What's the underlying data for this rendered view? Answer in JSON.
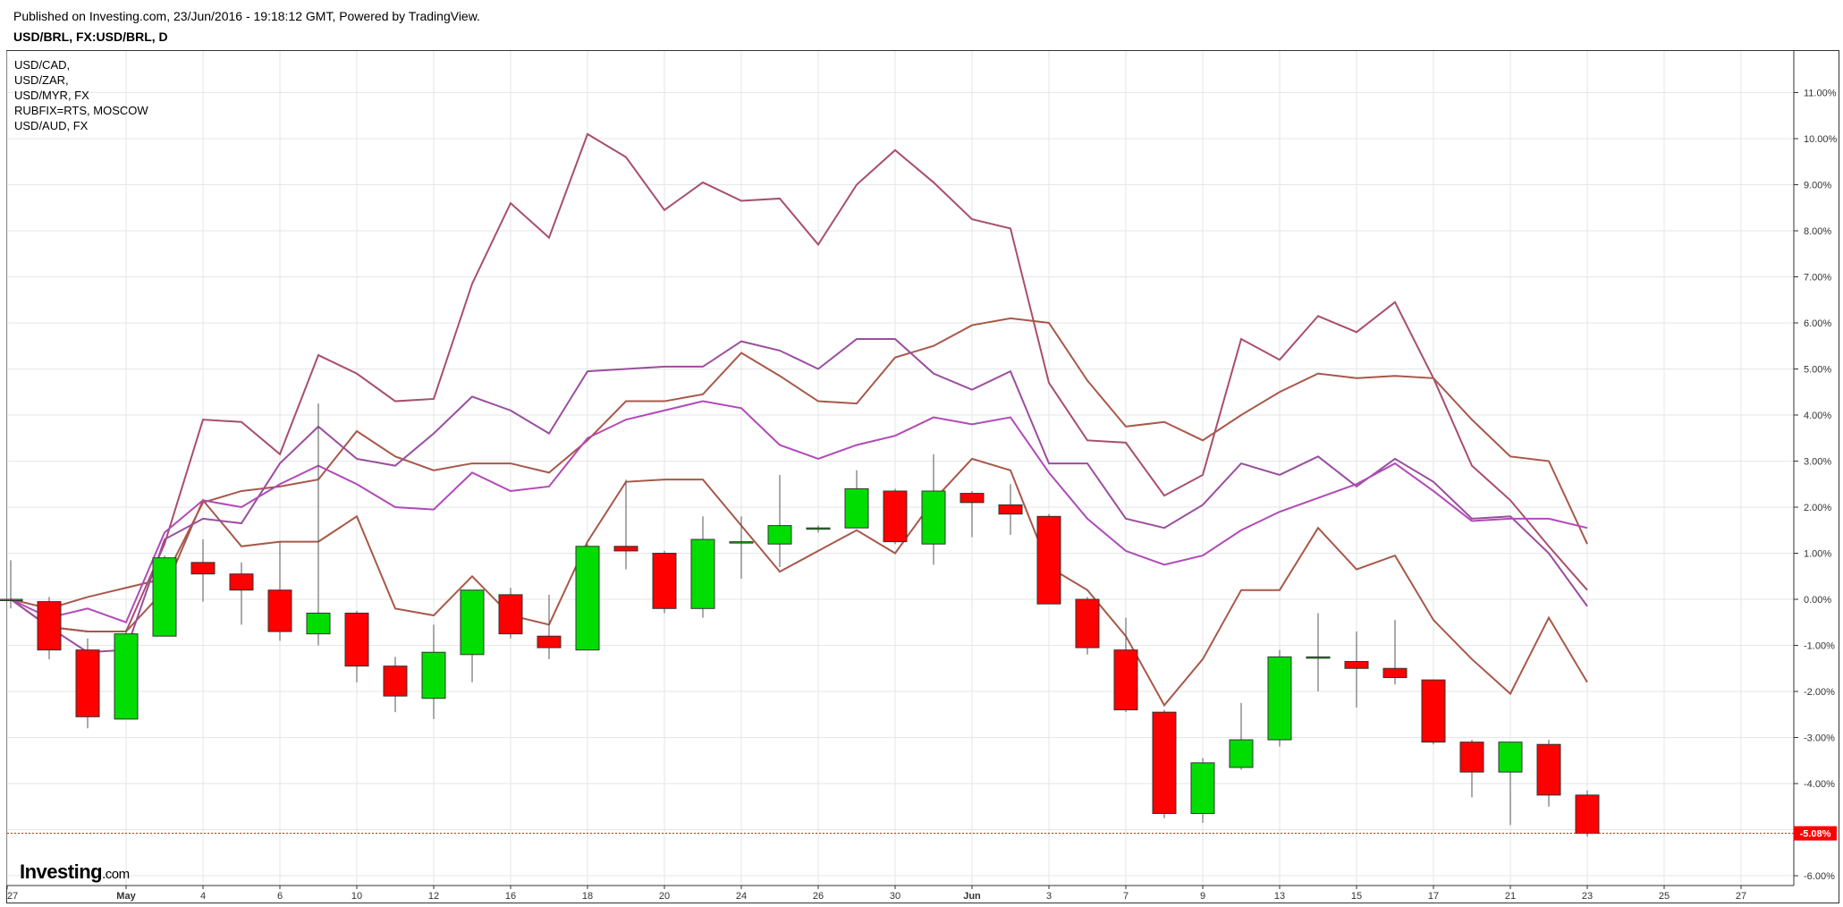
{
  "header": {
    "published": "Published on Investing.com, 23/Jun/2016 - 19:18:12 GMT, Powered by TradingView.",
    "symbol": "USD/BRL, FX:USD/BRL, D"
  },
  "logo": {
    "name": "Investing",
    "suffix": ".com"
  },
  "chart_data": {
    "type": "candlestick_with_lines",
    "colors": {
      "up": "#00dd00",
      "down": "#ff0000",
      "wick": "#555555",
      "grid": "#e6e6e6",
      "current_price": "#ff0000"
    },
    "legend": [
      "USD/CAD,",
      "USD/ZAR,",
      "USD/MYR, FX",
      "RUBFIX=RTS, MOSCOW",
      "USD/AUD, FX"
    ],
    "y_ticks": [
      "11.00%",
      "10.00%",
      "9.00%",
      "8.00%",
      "7.00%",
      "6.00%",
      "5.00%",
      "4.00%",
      "3.00%",
      "2.00%",
      "1.00%",
      "0.00%",
      "-1.00%",
      "-2.00%",
      "-3.00%",
      "-4.00%",
      "-5.00%",
      "-6.00%"
    ],
    "y_tick_values": [
      11,
      10,
      9,
      8,
      7,
      6,
      5,
      4,
      3,
      2,
      1,
      0,
      -1,
      -2,
      -3,
      -4,
      -5,
      -6
    ],
    "ylim": [
      -6.3,
      11.3
    ],
    "x_ticks": [
      "27",
      "May",
      "4",
      "6",
      "10",
      "12",
      "16",
      "18",
      "20",
      "24",
      "26",
      "30",
      "Jun",
      "3",
      "7",
      "9",
      "13",
      "15",
      "17",
      "21",
      "23",
      "25",
      "27"
    ],
    "x_tick_index": [
      0,
      3,
      5,
      7,
      9,
      11,
      13,
      15,
      17,
      19,
      21,
      23,
      25,
      27,
      29,
      31,
      33,
      35,
      37,
      39,
      41,
      43,
      45
    ],
    "current_price_label": "-5.08%",
    "current_price": -5.08,
    "candles": [
      {
        "o": 0.0,
        "h": 0.85,
        "l": -0.2,
        "c": 0.0
      },
      {
        "o": -0.05,
        "h": 0.05,
        "l": -1.3,
        "c": -1.1
      },
      {
        "o": -1.1,
        "h": -0.85,
        "l": -2.8,
        "c": -2.55
      },
      {
        "o": -2.6,
        "h": -0.65,
        "l": -2.6,
        "c": -0.75
      },
      {
        "o": -0.8,
        "h": 0.95,
        "l": -0.8,
        "c": 0.9
      },
      {
        "o": 0.8,
        "h": 1.3,
        "l": -0.05,
        "c": 0.55
      },
      {
        "o": 0.55,
        "h": 0.8,
        "l": -0.55,
        "c": 0.2
      },
      {
        "o": 0.2,
        "h": 1.25,
        "l": -0.9,
        "c": -0.7
      },
      {
        "o": -0.75,
        "h": 4.25,
        "l": -1.0,
        "c": -0.3
      },
      {
        "o": -0.3,
        "h": -0.25,
        "l": -1.8,
        "c": -1.45
      },
      {
        "o": -1.45,
        "h": -1.25,
        "l": -2.45,
        "c": -2.1
      },
      {
        "o": -2.15,
        "h": -0.55,
        "l": -2.6,
        "c": -1.15
      },
      {
        "o": -1.2,
        "h": 0.2,
        "l": -1.8,
        "c": 0.2
      },
      {
        "o": 0.1,
        "h": 0.25,
        "l": -0.85,
        "c": -0.75
      },
      {
        "o": -0.8,
        "h": 0.1,
        "l": -1.3,
        "c": -1.05
      },
      {
        "o": -1.1,
        "h": 1.2,
        "l": -1.1,
        "c": 1.15
      },
      {
        "o": 1.15,
        "h": 2.6,
        "l": 0.65,
        "c": 1.05
      },
      {
        "o": 1.0,
        "h": 1.05,
        "l": -0.3,
        "c": -0.2
      },
      {
        "o": -0.2,
        "h": 1.8,
        "l": -0.4,
        "c": 1.3
      },
      {
        "o": 1.25,
        "h": 1.8,
        "l": 0.45,
        "c": 1.25
      },
      {
        "o": 1.2,
        "h": 2.7,
        "l": 0.7,
        "c": 1.6
      },
      {
        "o": 1.55,
        "h": 1.6,
        "l": 1.45,
        "c": 1.55
      },
      {
        "o": 1.55,
        "h": 2.8,
        "l": 1.55,
        "c": 2.4
      },
      {
        "o": 2.35,
        "h": 2.4,
        "l": 1.2,
        "c": 1.25
      },
      {
        "o": 1.2,
        "h": 3.15,
        "l": 0.75,
        "c": 2.35
      },
      {
        "o": 2.3,
        "h": 2.35,
        "l": 1.35,
        "c": 2.1
      },
      {
        "o": 2.05,
        "h": 2.5,
        "l": 1.4,
        "c": 1.85
      },
      {
        "o": 1.8,
        "h": 1.85,
        "l": -0.1,
        "c": -0.1
      },
      {
        "o": 0.0,
        "h": 0.05,
        "l": -1.2,
        "c": -1.05
      },
      {
        "o": -1.1,
        "h": -0.4,
        "l": -2.45,
        "c": -2.4
      },
      {
        "o": -2.45,
        "h": -2.4,
        "l": -4.75,
        "c": -4.65
      },
      {
        "o": -4.65,
        "h": -3.45,
        "l": -4.85,
        "c": -3.55
      },
      {
        "o": -3.65,
        "h": -2.25,
        "l": -3.7,
        "c": -3.05
      },
      {
        "o": -3.05,
        "h": -1.1,
        "l": -3.2,
        "c": -1.25
      },
      {
        "o": -1.25,
        "h": -0.3,
        "l": -2.0,
        "c": -1.25
      },
      {
        "o": -1.35,
        "h": -0.7,
        "l": -2.35,
        "c": -1.5
      },
      {
        "o": -1.5,
        "h": -0.45,
        "l": -1.85,
        "c": -1.7
      },
      {
        "o": -1.75,
        "h": -1.75,
        "l": -3.15,
        "c": -3.1
      },
      {
        "o": -3.1,
        "h": -3.05,
        "l": -4.3,
        "c": -3.75
      },
      {
        "o": -3.75,
        "h": -3.1,
        "l": -4.9,
        "c": -3.1
      },
      {
        "o": -3.15,
        "h": -3.05,
        "l": -4.5,
        "c": -4.25
      },
      {
        "o": -4.25,
        "h": -4.15,
        "l": -5.15,
        "c": -5.08
      }
    ],
    "series": [
      {
        "color": "#a84e6e",
        "values": [
          0,
          -0.6,
          -0.7,
          -0.7,
          1.2,
          3.9,
          3.85,
          3.15,
          5.3,
          4.9,
          4.3,
          4.35,
          6.85,
          8.6,
          7.85,
          10.1,
          9.6,
          8.45,
          9.05,
          8.65,
          8.7,
          7.7,
          9.0,
          9.75,
          9.05,
          8.25,
          8.05,
          4.7,
          3.45,
          3.4,
          2.25,
          2.7,
          5.65,
          5.2,
          6.15,
          5.8,
          6.45,
          4.8,
          2.9,
          2.15,
          1.15,
          0.2
        ]
      },
      {
        "color": "#a8584a",
        "values": [
          0,
          -0.2,
          0.05,
          0.25,
          0.45,
          2.1,
          2.35,
          2.45,
          2.6,
          3.65,
          3.1,
          2.8,
          2.95,
          2.95,
          2.75,
          3.45,
          4.3,
          4.3,
          4.45,
          5.35,
          4.85,
          4.3,
          4.25,
          5.25,
          5.5,
          5.95,
          6.1,
          6.0,
          4.75,
          3.75,
          3.85,
          3.45,
          4.0,
          4.5,
          4.9,
          4.8,
          4.85,
          4.8,
          3.9,
          3.1,
          3.0,
          1.2
        ]
      },
      {
        "color": "#a8584a",
        "values": [
          0,
          -0.6,
          -0.7,
          -0.7,
          0.2,
          2.15,
          1.15,
          1.25,
          1.25,
          1.8,
          -0.2,
          -0.35,
          0.5,
          -0.35,
          -0.55,
          1.25,
          2.55,
          2.6,
          2.6,
          1.6,
          0.6,
          1.05,
          1.5,
          1.0,
          2.15,
          3.05,
          2.8,
          0.7,
          0.2,
          -0.8,
          -2.3,
          -1.3,
          0.2,
          0.2,
          1.55,
          0.65,
          0.95,
          -0.45,
          -1.3,
          -2.05,
          -0.4,
          -1.8
        ]
      },
      {
        "color": "#9a4e9e",
        "values": [
          0,
          -0.6,
          -1.15,
          -1.1,
          1.3,
          1.75,
          1.65,
          2.95,
          3.75,
          3.05,
          2.9,
          3.6,
          4.4,
          4.1,
          3.6,
          4.95,
          5.0,
          5.05,
          5.05,
          5.6,
          5.4,
          5.0,
          5.65,
          5.65,
          4.9,
          4.55,
          4.95,
          2.95,
          2.95,
          1.75,
          1.55,
          2.05,
          2.95,
          2.7,
          3.1,
          2.45,
          3.05,
          2.55,
          1.75,
          1.8,
          1.0,
          -0.15
        ]
      },
      {
        "color": "#b04ab8",
        "values": [
          0,
          -0.4,
          -0.2,
          -0.5,
          1.45,
          2.15,
          2.0,
          2.5,
          2.9,
          2.5,
          2.0,
          1.95,
          2.75,
          2.35,
          2.45,
          3.5,
          3.9,
          4.1,
          4.3,
          4.15,
          3.35,
          3.05,
          3.35,
          3.55,
          3.95,
          3.8,
          3.95,
          2.75,
          1.75,
          1.05,
          0.75,
          0.95,
          1.5,
          1.9,
          2.2,
          2.5,
          2.95,
          2.35,
          1.7,
          1.75,
          1.75,
          1.55
        ]
      }
    ]
  }
}
